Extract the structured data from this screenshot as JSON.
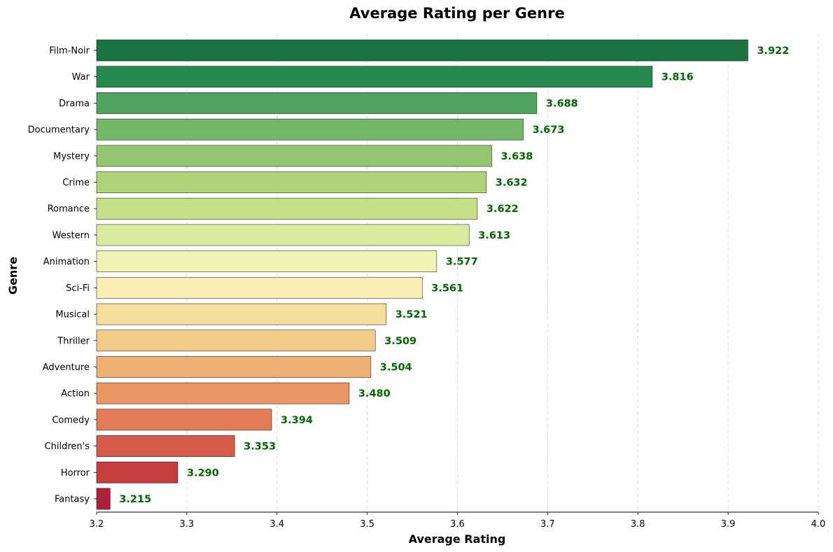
{
  "chart_data": {
    "type": "bar",
    "orientation": "horizontal",
    "title": "Average Rating per Genre",
    "xlabel": "Average Rating",
    "ylabel": "Genre",
    "xlim": [
      3.2,
      4.0
    ],
    "xticks": [
      "3.2",
      "3.3",
      "3.4",
      "3.5",
      "3.6",
      "3.7",
      "3.8",
      "3.9",
      "4.0"
    ],
    "grid": "x-dashed",
    "categories": [
      "Film-Noir",
      "War",
      "Drama",
      "Documentary",
      "Mystery",
      "Crime",
      "Romance",
      "Western",
      "Animation",
      "Sci-Fi",
      "Musical",
      "Thriller",
      "Adventure",
      "Action",
      "Comedy",
      "Children's",
      "Horror",
      "Fantasy"
    ],
    "values": [
      3.922,
      3.816,
      3.688,
      3.673,
      3.638,
      3.632,
      3.622,
      3.613,
      3.577,
      3.561,
      3.521,
      3.509,
      3.504,
      3.48,
      3.394,
      3.353,
      3.29,
      3.215
    ],
    "value_labels": [
      "3.922",
      "3.816",
      "3.688",
      "3.673",
      "3.638",
      "3.632",
      "3.622",
      "3.613",
      "3.577",
      "3.561",
      "3.521",
      "3.509",
      "3.504",
      "3.480",
      "3.394",
      "3.353",
      "3.290",
      "3.215"
    ],
    "colors": [
      "#1a7340",
      "#268a4f",
      "#50a45f",
      "#73b76b",
      "#94c672",
      "#aed47a",
      "#c6e08a",
      "#dceaa0",
      "#f0f5b5",
      "#f8eeb4",
      "#f6df9c",
      "#f2cb88",
      "#eeb175",
      "#e99865",
      "#e37b57",
      "#d65c4b",
      "#c43e3d",
      "#ac2137"
    ],
    "value_label_color": "#006400"
  }
}
